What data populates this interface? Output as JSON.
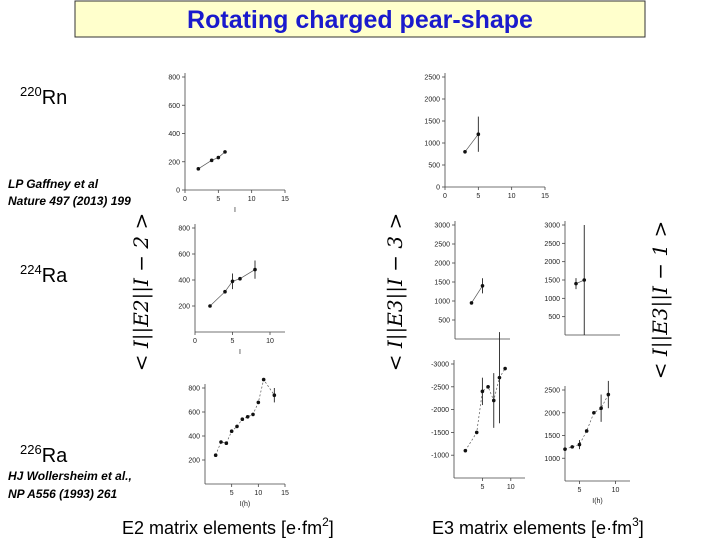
{
  "title": "Rotating charged pear-shape",
  "nuclei": [
    {
      "mass": "220",
      "element": "Rn"
    },
    {
      "mass": "224",
      "element": "Ra"
    },
    {
      "mass": "226",
      "element": "Ra"
    }
  ],
  "references": [
    [
      "LP Gaffney et al",
      "Nature 497 (2013) 199"
    ],
    [
      "HJ Wollersheim et al.,",
      "NP A556 (1993) 261"
    ]
  ],
  "axis_labels": [
    "< I||E2||I − 2 >",
    "< I||E3||I − 3 >",
    "< I||E3||I − 1 >"
  ],
  "captions": [
    {
      "text": "E2 matrix elements [e·fm",
      "superscript": "2",
      "suffix": "]"
    },
    {
      "text": "E3 matrix elements [e·fm",
      "superscript": "3",
      "suffix": "]"
    }
  ],
  "panels": [
    {
      "xlim": [
        0,
        15
      ],
      "ylim": [
        0,
        800
      ],
      "xticks": [
        0,
        5,
        10,
        15
      ],
      "yticks": [
        0,
        200,
        400,
        600,
        800
      ],
      "x_label": "I",
      "points": [
        {
          "x": 2,
          "y": 150
        },
        {
          "x": 4,
          "y": 210
        },
        {
          "x": 5,
          "y": 230
        },
        {
          "x": 6,
          "y": 270
        }
      ]
    },
    {
      "xlim": [
        0,
        15
      ],
      "ylim": [
        0,
        2500
      ],
      "xticks": [
        0,
        5,
        10,
        15
      ],
      "yticks": [
        0,
        500,
        1000,
        1500,
        2000,
        2500
      ],
      "points": [
        {
          "x": 3,
          "y": 800
        },
        {
          "x": 5,
          "y": 1200,
          "err": 400
        }
      ]
    },
    {
      "xlim": [
        0,
        12
      ],
      "ylim": [
        0,
        800
      ],
      "xticks": [
        0,
        5,
        10
      ],
      "yticks": [
        200,
        400,
        600,
        800
      ],
      "x_label": "I",
      "points": [
        {
          "x": 2,
          "y": 200
        },
        {
          "x": 4,
          "y": 310
        },
        {
          "x": 5,
          "y": 390,
          "err": 60
        },
        {
          "x": 6,
          "y": 410
        },
        {
          "x": 8,
          "y": 480,
          "err": 70
        }
      ]
    },
    {
      "xlim": [
        0,
        10
      ],
      "ylim": [
        0,
        3000
      ],
      "yticks": [
        500,
        1000,
        1500,
        2000,
        2500,
        3000
      ],
      "points": [
        {
          "x": 3,
          "y": 950
        },
        {
          "x": 5,
          "y": 1400,
          "err": 200
        }
      ]
    },
    {
      "xlim": [
        0,
        10
      ],
      "ylim": [
        0,
        3000
      ],
      "yticks": [
        500,
        1000,
        1500,
        2000,
        2500,
        3000
      ],
      "points": [
        {
          "x": 2,
          "y": 1400,
          "err": 150
        },
        {
          "x": 3.5,
          "y": 1500,
          "err": 1500
        }
      ]
    },
    {
      "xlim": [
        0,
        15
      ],
      "ylim": [
        0,
        800
      ],
      "xticks": [
        5,
        10,
        15
      ],
      "yticks": [
        200,
        400,
        600,
        800
      ],
      "x_label": "I(h)",
      "points": [
        {
          "x": 2,
          "y": 240
        },
        {
          "x": 3,
          "y": 350
        },
        {
          "x": 4,
          "y": 340
        },
        {
          "x": 5,
          "y": 440
        },
        {
          "x": 6,
          "y": 480
        },
        {
          "x": 7,
          "y": 540
        },
        {
          "x": 8,
          "y": 560
        },
        {
          "x": 9,
          "y": 580
        },
        {
          "x": 10,
          "y": 680
        },
        {
          "x": 11,
          "y": 870
        },
        {
          "x": 13,
          "y": 740,
          "err": 60
        }
      ]
    },
    {
      "xlim": [
        0,
        12.5
      ],
      "ylim": [
        -500,
        -3000
      ],
      "xticks": [
        5,
        10
      ],
      "yticks": [
        -3000,
        -2500,
        -2000,
        -1500,
        -1000
      ],
      "points": [
        {
          "x": 2,
          "y": -1100
        },
        {
          "x": 4,
          "y": -1500
        },
        {
          "x": 5,
          "y": -2400,
          "err": 300
        },
        {
          "x": 6,
          "y": -2500
        },
        {
          "x": 7,
          "y": -2200,
          "err": 600
        },
        {
          "x": 8,
          "y": -2700,
          "err": 1000
        },
        {
          "x": 9,
          "y": -2900
        }
      ]
    },
    {
      "xlim": [
        3,
        12
      ],
      "ylim": [
        500,
        2500
      ],
      "xticks": [
        5,
        10
      ],
      "yticks": [
        1000,
        1500,
        2000,
        2500
      ],
      "x_label": "I(h)",
      "points": [
        {
          "x": 3,
          "y": 1200
        },
        {
          "x": 4,
          "y": 1250
        },
        {
          "x": 5,
          "y": 1300,
          "err": 100
        },
        {
          "x": 6,
          "y": 1600
        },
        {
          "x": 7,
          "y": 2000
        },
        {
          "x": 8,
          "y": 2100,
          "err": 300
        },
        {
          "x": 9,
          "y": 2400,
          "err": 300
        }
      ]
    }
  ]
}
